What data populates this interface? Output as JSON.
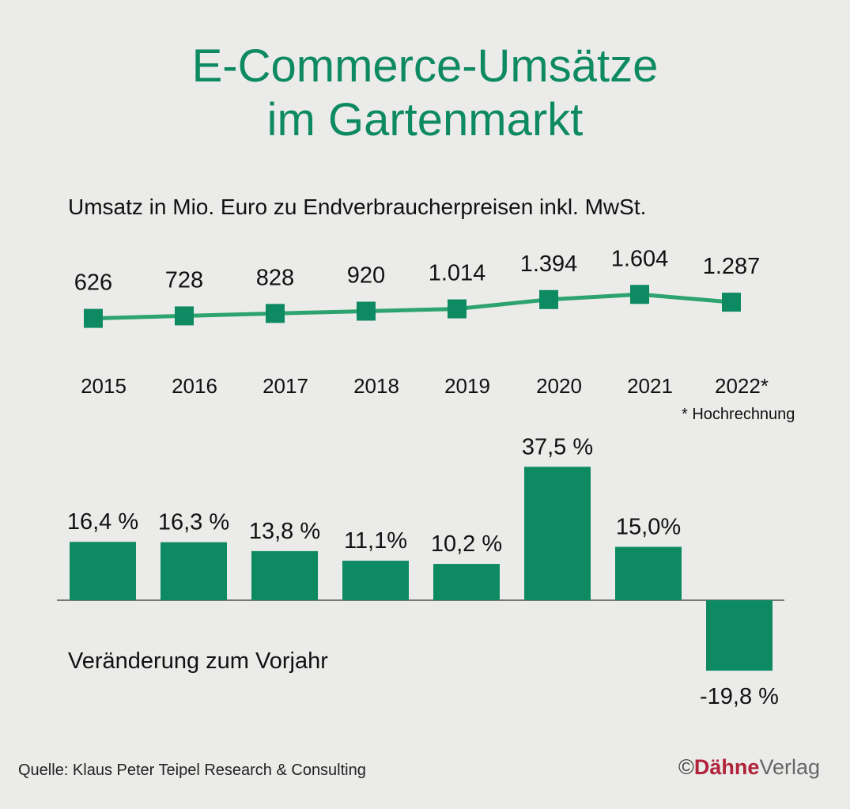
{
  "title_line1": "E-Commerce-Umsätze",
  "title_line2": "im Gartenmarkt",
  "subtitle": "Umsatz in Mio. Euro zu Endverbraucherpreisen inkl. MwSt.",
  "footnote": "* Hochrechnung",
  "change_label": "Veränderung zum Vorjahr",
  "source": "Quelle: Klaus Peter Teipel Research & Consulting",
  "publisher": {
    "copyright": "©",
    "brand": "Dähne",
    "verlag": "Verlag"
  },
  "colors": {
    "accent": "#0e8a63",
    "line": "#2da36f",
    "text": "#111111"
  },
  "chart_data": [
    {
      "type": "line",
      "title": "Umsatz in Mio. Euro zu Endverbraucherpreisen inkl. MwSt.",
      "categories": [
        "2015",
        "2016",
        "2017",
        "2018",
        "2019",
        "2020",
        "2021",
        "2022*"
      ],
      "values": [
        626,
        728,
        828,
        920,
        1014,
        1394,
        1604,
        1287
      ],
      "value_labels": [
        "626",
        "728",
        "828",
        "920",
        "1.014",
        "1.394",
        "1.604",
        "1.287"
      ],
      "unit": "Mio. Euro"
    },
    {
      "type": "bar",
      "title": "Veränderung zum Vorjahr",
      "categories": [
        "2015",
        "2016",
        "2017",
        "2018",
        "2019",
        "2020",
        "2021",
        "2022*"
      ],
      "values": [
        16.4,
        16.3,
        13.8,
        11.1,
        10.2,
        37.5,
        15.0,
        -19.8
      ],
      "value_labels": [
        "16,4 %",
        "16,3 %",
        "13,8 %",
        "11,1%",
        "10,2 %",
        "37,5 %",
        "15,0%",
        "-19,8 %"
      ],
      "unit": "%"
    }
  ]
}
